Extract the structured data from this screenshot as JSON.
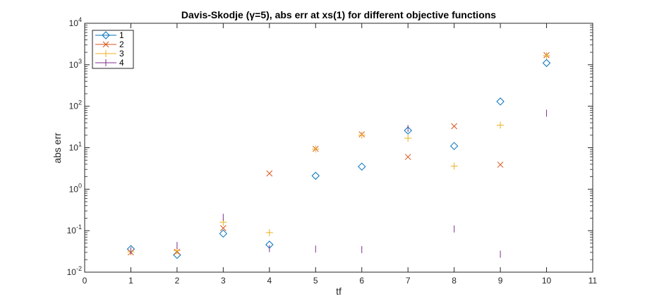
{
  "chart_data": {
    "type": "scatter",
    "title": "Davis-Skodje (γ=5), abs err at xs(1) for different objective functions",
    "xlabel": "tf",
    "ylabel": "abs err",
    "xlim": [
      0,
      11
    ],
    "ylim": [
      0.01,
      10000
    ],
    "yscale": "log",
    "x_ticks": [
      "0",
      "1",
      "2",
      "3",
      "4",
      "5",
      "6",
      "7",
      "8",
      "9",
      "10",
      "11"
    ],
    "y_ticks": [
      {
        "base": "10",
        "exp": "-2"
      },
      {
        "base": "10",
        "exp": "-1"
      },
      {
        "base": "10",
        "exp": "0"
      },
      {
        "base": "10",
        "exp": "1"
      },
      {
        "base": "10",
        "exp": "2"
      },
      {
        "base": "10",
        "exp": "3"
      },
      {
        "base": "10",
        "exp": "4"
      }
    ],
    "grid": false,
    "legend_position": "top-left",
    "x": [
      1,
      2,
      3,
      4,
      5,
      6,
      7,
      8,
      9,
      10
    ],
    "series": [
      {
        "name": "1",
        "marker": "diamond",
        "color": "#0072BD",
        "values": [
          0.036,
          0.026,
          0.085,
          0.046,
          2.1,
          3.5,
          26,
          11,
          130,
          1100
        ]
      },
      {
        "name": "2",
        "marker": "x",
        "color": "#D95319",
        "values": [
          0.03,
          0.031,
          0.115,
          2.4,
          9.4,
          21,
          6.0,
          33,
          3.9,
          1700
        ]
      },
      {
        "name": "3",
        "marker": "plus",
        "color": "#EDB120",
        "values": [
          0.031,
          0.033,
          0.16,
          0.09,
          9.3,
          20,
          17,
          3.6,
          35,
          1650
        ]
      },
      {
        "name": "4",
        "marker": "vline",
        "color": "#7E2F8E",
        "values": [
          0.033,
          0.044,
          0.21,
          0.037,
          0.036,
          0.035,
          29,
          0.11,
          0.027,
          68
        ]
      }
    ]
  }
}
